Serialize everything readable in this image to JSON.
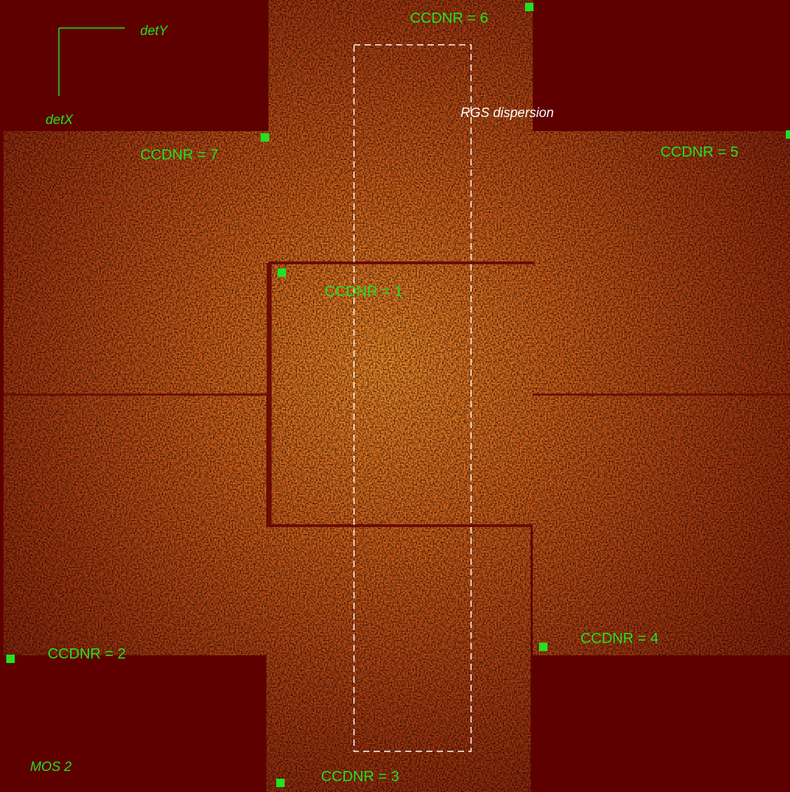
{
  "ccd_labels": [
    "CCDNR = 6",
    "CCDNR = 7",
    "CCDNR = 5",
    "CCDNR = 1",
    "CCDNR = 2",
    "CCDNR = 4",
    "CCDNR = 3"
  ],
  "axes": {
    "y_label": "detY",
    "x_label": "detX"
  },
  "annotation": "RGS dispersion",
  "instrument": "MOS 2"
}
